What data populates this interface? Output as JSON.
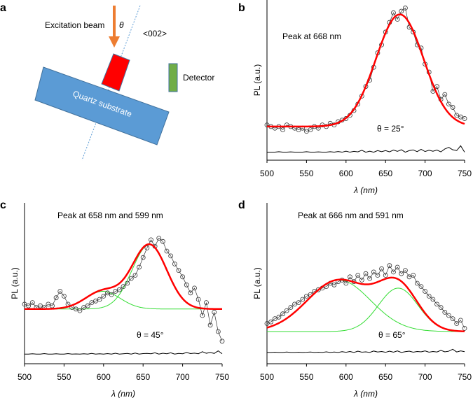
{
  "panel_a": {
    "label": "a",
    "excitation_label": "Excitation beam",
    "theta": "θ",
    "direction": "<002>",
    "detector_label": "Detector",
    "substrate_label": "Quartz substrate",
    "colors": {
      "beam": "#ed7d31",
      "sample": "#ff0000",
      "substrate": "#5b9bd5",
      "detector": "#70ad47"
    }
  },
  "chart_data": [
    {
      "panel": "b",
      "type": "scatter",
      "title": "Peak at 668 nm",
      "annotation": "θ = 25°",
      "xlabel": "λ (nm)",
      "ylabel": "PL (a.u.)",
      "xlim": [
        500,
        750
      ],
      "ylim": [
        0,
        100
      ],
      "xticks": [
        "500",
        "550",
        "600",
        "650",
        "700",
        "750"
      ],
      "x_start": 500,
      "x_step": 5,
      "data": [
        22,
        21,
        20,
        21,
        19,
        22,
        21,
        20,
        19,
        20,
        18,
        19,
        21,
        20,
        22,
        21,
        23,
        22,
        24,
        25,
        26,
        28,
        31,
        35,
        40,
        46,
        50,
        58,
        67,
        72,
        80,
        86,
        92,
        88,
        93,
        95,
        83,
        80,
        72,
        70,
        60,
        55,
        43,
        46,
        38,
        41,
        35,
        33,
        28,
        27,
        26
      ],
      "residual": [
        5,
        5,
        5,
        5.3,
        5,
        5,
        5.2,
        5,
        5,
        5,
        5.3,
        5,
        5,
        5.2,
        5,
        5,
        5.3,
        5,
        5.4,
        5,
        5.6,
        5,
        5.5,
        5.2,
        6.2,
        5,
        5.6,
        5,
        6,
        5.3,
        6,
        5.2,
        6.3,
        5.5,
        6.5,
        5,
        6,
        6.4,
        5.3,
        6.8,
        5.4,
        6.2,
        5.6,
        6.3,
        5.2,
        7,
        8,
        6.5,
        6,
        9,
        5
      ],
      "fit": {
        "baseline": 21,
        "peaks": [
          {
            "center": 668,
            "amplitude": 70,
            "sigma": 30
          }
        ]
      },
      "show_components": false,
      "colors": {
        "fit": "#ff0000",
        "component": "#33dd33",
        "data": "#333333"
      }
    },
    {
      "panel": "c",
      "type": "scatter",
      "title": "Peak at 658 nm and 599 nm",
      "annotation": "θ = 45°",
      "xlabel": "λ (nm)",
      "ylabel": "PL (a.u.)",
      "xlim": [
        500,
        750
      ],
      "ylim": [
        0,
        100
      ],
      "xticks": [
        "500",
        "550",
        "600",
        "650",
        "700",
        "750"
      ],
      "x_start": 500,
      "x_step": 5,
      "data": [
        37,
        36,
        38,
        35,
        36,
        35,
        37,
        36,
        41,
        45,
        42,
        37,
        35,
        34,
        33,
        35,
        36,
        38,
        39,
        40,
        42,
        44,
        43,
        45,
        46,
        48,
        50,
        53,
        55,
        60,
        66,
        72,
        77,
        73,
        78,
        76,
        70,
        67,
        62,
        58,
        54,
        49,
        44,
        47,
        40,
        30,
        38,
        24,
        32,
        20,
        14
      ],
      "residual": [
        6,
        6,
        6.2,
        6,
        6,
        6.3,
        6,
        6,
        6.2,
        6,
        6,
        6.3,
        6,
        6.1,
        6,
        6.2,
        6,
        6.4,
        6,
        6.2,
        6,
        6.3,
        6,
        6.5,
        6,
        6.2,
        6.4,
        6,
        6.6,
        6,
        6.3,
        6.4,
        6.2,
        6.8,
        6,
        6.5,
        6.2,
        6.8,
        6,
        6.4,
        6.2,
        7,
        6.3,
        6.6,
        6.2,
        7.5,
        6.5,
        7,
        6.4,
        8,
        6.2
      ],
      "fit": {
        "baseline": 34,
        "peaks": [
          {
            "center": 599,
            "amplitude": 11,
            "sigma": 22
          },
          {
            "center": 658,
            "amplitude": 40,
            "sigma": 22
          }
        ]
      },
      "show_components": true,
      "colors": {
        "fit": "#ff0000",
        "component": "#33dd33",
        "data": "#333333"
      }
    },
    {
      "panel": "d",
      "type": "scatter",
      "title": "Peak at 666 nm and 591 nm",
      "annotation": "θ = 65°",
      "xlabel": "λ (nm)",
      "ylabel": "PL (a.u.)",
      "xlim": [
        500,
        750
      ],
      "ylim": [
        0,
        100
      ],
      "xticks": [
        "500",
        "550",
        "600",
        "650",
        "700",
        "750"
      ],
      "x_start": 500,
      "x_step": 5,
      "data": [
        25,
        26,
        28,
        29,
        31,
        33,
        35,
        37,
        38,
        40,
        42,
        43,
        45,
        46,
        47,
        48,
        50,
        49,
        51,
        52,
        50,
        54,
        51,
        55,
        52,
        56,
        53,
        57,
        55,
        59,
        55,
        61,
        57,
        60,
        56,
        58,
        54,
        55,
        50,
        48,
        45,
        42,
        40,
        37,
        35,
        32,
        30,
        28,
        25,
        27,
        22
      ],
      "residual": [
        7,
        7,
        7.2,
        7,
        7,
        7.3,
        7,
        7,
        7.2,
        7,
        7.1,
        7.3,
        7,
        7.2,
        7,
        7.4,
        7,
        7.3,
        7,
        7.5,
        7.1,
        7.6,
        7,
        7.8,
        7.2,
        7.4,
        7,
        7.9,
        7.3,
        7.6,
        7.1,
        7.8,
        7.2,
        8,
        7,
        7.5,
        7.8,
        7.2,
        7.6,
        7.4,
        8,
        7.2,
        7.6,
        7.3,
        8.3,
        7.4,
        7.8,
        9,
        7.3,
        8,
        7.5
      ],
      "fit": {
        "baseline": 20,
        "peaks": [
          {
            "center": 591,
            "amplitude": 32,
            "sigma": 40
          },
          {
            "center": 666,
            "amplitude": 27,
            "sigma": 25
          }
        ]
      },
      "show_components": true,
      "colors": {
        "fit": "#ff0000",
        "component": "#33dd33",
        "data": "#333333"
      }
    }
  ]
}
